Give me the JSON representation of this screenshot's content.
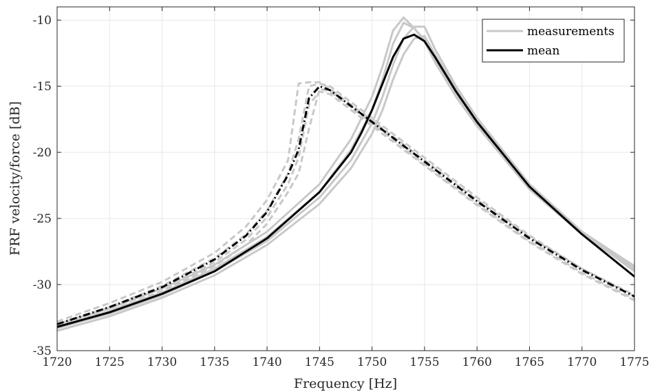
{
  "chart_data": {
    "type": "line",
    "xlabel": "Frequency [Hz]",
    "ylabel": "FRF velocity/force [dB]",
    "xlim": [
      1720,
      1775
    ],
    "ylim": [
      -35,
      -9
    ],
    "xticks": [
      "1720",
      "1725",
      "1730",
      "1735",
      "1740",
      "1745",
      "1750",
      "1755",
      "1760",
      "1765",
      "1770",
      "1775"
    ],
    "yticks": [
      "-35",
      "-30",
      "-25",
      "-20",
      "-15",
      "-10"
    ],
    "xtick_values": [
      1720,
      1725,
      1730,
      1735,
      1740,
      1745,
      1750,
      1755,
      1760,
      1765,
      1770,
      1775
    ],
    "ytick_values": [
      -35,
      -30,
      -25,
      -20,
      -15,
      -10
    ],
    "grid": true,
    "legend": {
      "position": "top-right",
      "entries": [
        {
          "label": "measurements",
          "color": "#c8c8c8"
        },
        {
          "label": "mean",
          "color": "#000000"
        }
      ]
    },
    "colors": {
      "measurements": "#c8c8c8",
      "mean": "#000000"
    },
    "series": [
      {
        "group": "measurements",
        "style": "solid",
        "x": [
          1720,
          1725,
          1730,
          1735,
          1740,
          1745,
          1748,
          1750,
          1751,
          1752,
          1753,
          1754,
          1755,
          1756,
          1758,
          1760,
          1765,
          1770,
          1775
        ],
        "y": [
          -33.0,
          -31.8,
          -30.3,
          -28.5,
          -26.0,
          -22.4,
          -19.0,
          -15.8,
          -13.5,
          -10.8,
          -9.8,
          -10.6,
          -11.5,
          -13.0,
          -15.5,
          -17.8,
          -22.6,
          -26.0,
          -28.6
        ]
      },
      {
        "group": "measurements",
        "style": "solid",
        "x": [
          1720,
          1725,
          1730,
          1735,
          1740,
          1745,
          1748,
          1750,
          1751,
          1752,
          1753,
          1754,
          1755,
          1756,
          1758,
          1760,
          1765,
          1770,
          1775
        ],
        "y": [
          -33.2,
          -32.0,
          -30.6,
          -28.8,
          -26.4,
          -23.0,
          -19.8,
          -16.8,
          -14.5,
          -11.8,
          -10.2,
          -10.6,
          -11.6,
          -13.2,
          -15.8,
          -18.0,
          -22.8,
          -26.2,
          -28.9
        ]
      },
      {
        "group": "measurements",
        "style": "solid",
        "x": [
          1720,
          1725,
          1730,
          1735,
          1740,
          1745,
          1748,
          1750,
          1751,
          1752,
          1753,
          1754,
          1755,
          1756,
          1758,
          1760,
          1765,
          1770,
          1775
        ],
        "y": [
          -33.3,
          -32.2,
          -30.8,
          -29.0,
          -26.7,
          -23.4,
          -20.6,
          -17.8,
          -15.8,
          -13.4,
          -11.4,
          -10.5,
          -10.5,
          -12.2,
          -15.0,
          -17.4,
          -22.4,
          -26.0,
          -28.8
        ]
      },
      {
        "group": "measurements",
        "style": "solid",
        "x": [
          1720,
          1725,
          1730,
          1735,
          1740,
          1745,
          1748,
          1750,
          1751,
          1752,
          1753,
          1754,
          1755,
          1756,
          1758,
          1760,
          1765,
          1770,
          1775
        ],
        "y": [
          -33.5,
          -32.4,
          -31.0,
          -29.3,
          -27.0,
          -23.9,
          -21.2,
          -18.6,
          -16.8,
          -14.5,
          -12.6,
          -11.4,
          -11.2,
          -12.6,
          -15.2,
          -17.6,
          -22.5,
          -26.1,
          -29.0
        ]
      },
      {
        "group": "measurements",
        "style": "dashed",
        "x": [
          1720,
          1725,
          1730,
          1735,
          1738,
          1740,
          1742,
          1743,
          1744,
          1745,
          1746,
          1748,
          1750,
          1755,
          1760,
          1765,
          1770,
          1775
        ],
        "y": [
          -32.8,
          -31.4,
          -29.8,
          -27.6,
          -25.6,
          -23.6,
          -20.6,
          -14.8,
          -14.7,
          -14.7,
          -15.2,
          -16.4,
          -17.6,
          -20.6,
          -23.6,
          -26.4,
          -28.8,
          -30.8
        ]
      },
      {
        "group": "measurements",
        "style": "dashed",
        "x": [
          1720,
          1725,
          1730,
          1735,
          1738,
          1740,
          1742,
          1743,
          1744,
          1745,
          1746,
          1748,
          1750,
          1755,
          1760,
          1765,
          1770,
          1775
        ],
        "y": [
          -33.0,
          -31.7,
          -30.1,
          -28.0,
          -26.2,
          -24.4,
          -21.6,
          -19.0,
          -15.0,
          -14.8,
          -15.0,
          -16.2,
          -17.4,
          -20.4,
          -23.4,
          -26.3,
          -28.8,
          -30.9
        ]
      },
      {
        "group": "measurements",
        "style": "dashed",
        "x": [
          1720,
          1725,
          1730,
          1735,
          1738,
          1740,
          1742,
          1743,
          1744,
          1745,
          1746,
          1748,
          1750,
          1755,
          1760,
          1765,
          1770,
          1775
        ],
        "y": [
          -33.1,
          -31.8,
          -30.3,
          -28.3,
          -26.6,
          -24.9,
          -22.4,
          -20.4,
          -16.4,
          -15.4,
          -15.6,
          -16.8,
          -18.0,
          -21.0,
          -24.0,
          -26.8,
          -29.2,
          -31.2
        ]
      },
      {
        "group": "measurements",
        "style": "dashed",
        "x": [
          1720,
          1725,
          1730,
          1735,
          1738,
          1740,
          1742,
          1743,
          1744,
          1745,
          1746,
          1748,
          1750,
          1755,
          1760,
          1765,
          1770,
          1775
        ],
        "y": [
          -33.3,
          -32.0,
          -30.5,
          -28.6,
          -27.0,
          -25.4,
          -23.0,
          -21.6,
          -18.2,
          -15.2,
          -15.4,
          -16.6,
          -17.8,
          -20.9,
          -23.9,
          -26.7,
          -29.1,
          -31.1
        ]
      },
      {
        "group": "mean",
        "style": "solid",
        "x": [
          1720,
          1725,
          1730,
          1735,
          1740,
          1745,
          1748,
          1749,
          1750,
          1751,
          1752,
          1753,
          1754,
          1755,
          1756,
          1758,
          1760,
          1765,
          1770,
          1775
        ],
        "y": [
          -33.2,
          -32.1,
          -30.7,
          -29.0,
          -26.5,
          -23.0,
          -20.0,
          -18.5,
          -16.8,
          -14.8,
          -12.8,
          -11.4,
          -11.1,
          -11.6,
          -12.8,
          -15.4,
          -17.7,
          -22.6,
          -26.2,
          -29.4
        ]
      },
      {
        "group": "mean",
        "style": "dashdot",
        "x": [
          1720,
          1725,
          1730,
          1735,
          1738,
          1740,
          1742,
          1743,
          1744,
          1745,
          1746,
          1748,
          1750,
          1755,
          1760,
          1765,
          1770,
          1775
        ],
        "y": [
          -33.0,
          -31.7,
          -30.2,
          -28.1,
          -26.3,
          -24.5,
          -21.7,
          -19.8,
          -15.9,
          -15.0,
          -15.3,
          -16.5,
          -17.7,
          -20.7,
          -23.7,
          -26.5,
          -28.9,
          -30.9
        ]
      }
    ]
  }
}
